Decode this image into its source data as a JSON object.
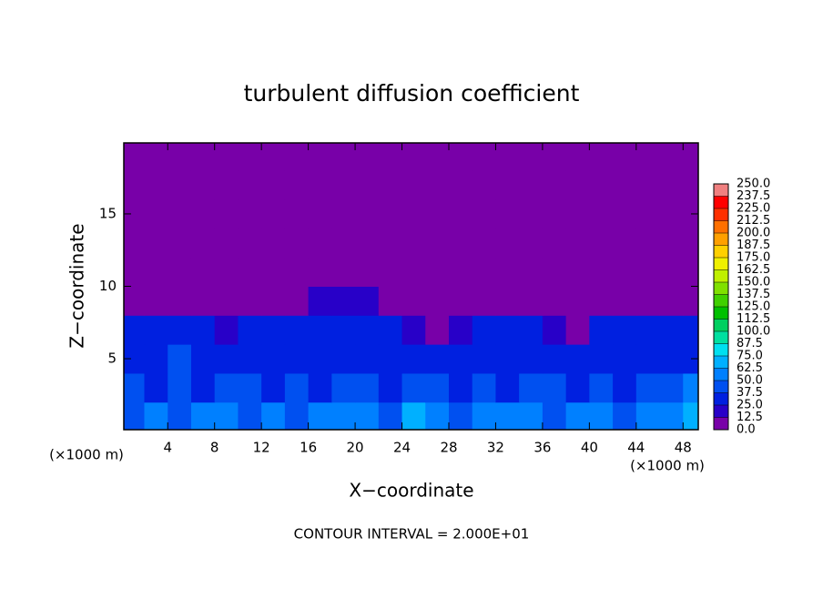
{
  "chart_data": {
    "type": "heatmap",
    "title": "turbulent diffusion coefficient",
    "xlabel": "X−coordinate",
    "ylabel": "Z−coordinate",
    "x_unit": "(×1000 m)",
    "y_unit": "(×1000 m)",
    "footer": "CONTOUR INTERVAL = 2.000E+01",
    "xlim": [
      0.25,
      49.3
    ],
    "ylim": [
      0.1,
      19.9
    ],
    "xticks": [
      4,
      8,
      12,
      16,
      20,
      24,
      28,
      32,
      36,
      40,
      44,
      48
    ],
    "yticks": [
      5,
      10,
      15
    ],
    "x": [
      1,
      3,
      5,
      7,
      9,
      11,
      13,
      15,
      17,
      19,
      21,
      23,
      25,
      27,
      29,
      31,
      33,
      35,
      37,
      39,
      41,
      43,
      45,
      47,
      49
    ],
    "y": [
      1,
      3,
      5,
      7,
      9,
      11,
      13,
      15,
      17,
      19
    ],
    "z": [
      [
        45,
        50,
        40,
        55,
        60,
        45,
        50,
        40,
        55,
        60,
        50,
        45,
        65,
        50,
        45,
        55,
        50,
        60,
        45,
        50,
        55,
        45,
        50,
        60,
        70
      ],
      [
        40,
        35,
        45,
        30,
        40,
        45,
        35,
        40,
        35,
        45,
        40,
        35,
        40,
        45,
        35,
        40,
        30,
        45,
        40,
        35,
        40,
        35,
        40,
        45,
        50
      ],
      [
        35,
        30,
        40,
        30,
        30,
        35,
        30,
        35,
        30,
        30,
        35,
        30,
        30,
        35,
        30,
        30,
        35,
        30,
        30,
        35,
        30,
        30,
        35,
        30,
        35
      ],
      [
        25,
        30,
        25,
        30,
        20,
        25,
        30,
        30,
        25,
        30,
        30,
        25,
        15,
        5,
        20,
        25,
        25,
        30,
        20,
        5,
        25,
        30,
        25,
        30,
        25
      ],
      [
        0,
        0,
        0,
        5,
        0,
        0,
        0,
        0,
        20,
        20,
        15,
        0,
        0,
        0,
        0,
        0,
        0,
        0,
        0,
        0,
        0,
        0,
        0,
        0,
        0
      ],
      [
        0,
        0,
        0,
        0,
        0,
        0,
        0,
        0,
        0,
        0,
        0,
        0,
        0,
        0,
        0,
        0,
        0,
        0,
        0,
        0,
        0,
        0,
        0,
        0,
        0
      ],
      [
        0,
        0,
        0,
        0,
        0,
        0,
        0,
        0,
        0,
        0,
        0,
        0,
        0,
        0,
        0,
        0,
        0,
        0,
        0,
        0,
        0,
        0,
        0,
        0,
        0
      ],
      [
        0,
        0,
        0,
        0,
        0,
        0,
        0,
        0,
        0,
        0,
        0,
        0,
        0,
        0,
        0,
        0,
        0,
        0,
        0,
        0,
        0,
        0,
        0,
        0,
        0
      ],
      [
        0,
        0,
        0,
        0,
        0,
        0,
        0,
        0,
        0,
        0,
        0,
        0,
        0,
        0,
        0,
        0,
        0,
        0,
        0,
        0,
        0,
        0,
        0,
        0,
        0
      ],
      [
        0,
        0,
        0,
        0,
        0,
        0,
        0,
        0,
        0,
        0,
        0,
        0,
        0,
        0,
        0,
        0,
        0,
        0,
        0,
        0,
        0,
        0,
        0,
        0,
        0
      ]
    ],
    "levels": [
      {
        "value": 0,
        "label": "0.0"
      },
      {
        "value": 12.5,
        "label": "12.5"
      },
      {
        "value": 25,
        "label": "25.0"
      },
      {
        "value": 37.5,
        "label": "37.5"
      },
      {
        "value": 50,
        "label": "50.0"
      },
      {
        "value": 62.5,
        "label": "62.5"
      },
      {
        "value": 75,
        "label": "75.0"
      },
      {
        "value": 87.5,
        "label": "87.5"
      },
      {
        "value": 100,
        "label": "100.0"
      },
      {
        "value": 112.5,
        "label": "112.5"
      },
      {
        "value": 125,
        "label": "125.0"
      },
      {
        "value": 137.5,
        "label": "137.5"
      },
      {
        "value": 150,
        "label": "150.0"
      },
      {
        "value": 162.5,
        "label": "162.5"
      },
      {
        "value": 175,
        "label": "175.0"
      },
      {
        "value": 187.5,
        "label": "187.5"
      },
      {
        "value": 200,
        "label": "200.0"
      },
      {
        "value": 212.5,
        "label": "212.5"
      },
      {
        "value": 225,
        "label": "225.0"
      },
      {
        "value": 237.5,
        "label": "237.5"
      },
      {
        "value": 250,
        "label": "250.0"
      }
    ],
    "colors": [
      "#7800a8",
      "#2800c8",
      "#0020e0",
      "#0050f0",
      "#0080ff",
      "#00b0ff",
      "#00e0f0",
      "#00e0a0",
      "#00d060",
      "#00c000",
      "#40d000",
      "#80e000",
      "#c0f000",
      "#f0f000",
      "#ffd000",
      "#ffa000",
      "#ff7000",
      "#ff3000",
      "#ff0000",
      "#f08080"
    ]
  }
}
